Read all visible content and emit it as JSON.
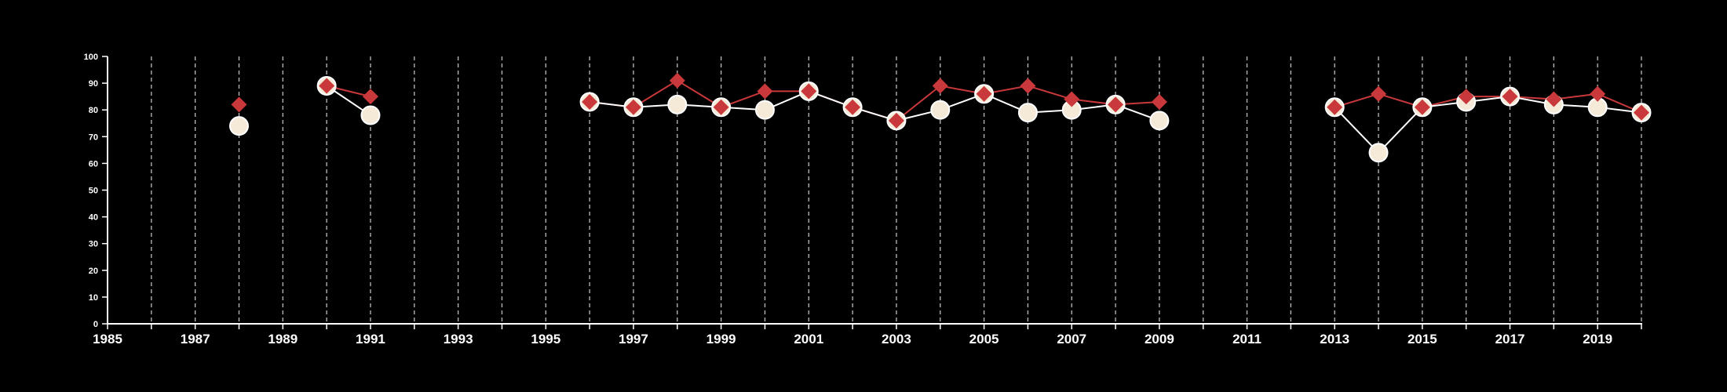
{
  "chart_data": {
    "type": "line",
    "title": "",
    "xlabel": "",
    "ylabel": "",
    "xlim": [
      1985,
      2020
    ],
    "ylim": [
      0,
      100
    ],
    "x_ticks": [
      1985,
      1987,
      1989,
      1991,
      1993,
      1995,
      1997,
      1999,
      2001,
      2003,
      2005,
      2007,
      2009,
      2011,
      2013,
      2015,
      2017,
      2019
    ],
    "y_ticks": [
      0,
      10,
      20,
      30,
      40,
      50,
      60,
      70,
      80,
      90,
      100
    ],
    "vertical_gridlines": "dashed, every year",
    "background": "#000000",
    "axis_color": "#ffffff",
    "series": [
      {
        "marker": "diamond",
        "color": "#c9383a",
        "points": [
          [
            1988,
            82
          ],
          [
            1990,
            89
          ],
          [
            1991,
            85
          ],
          [
            1996,
            83
          ],
          [
            1997,
            81
          ],
          [
            1998,
            91
          ],
          [
            1999,
            81
          ],
          [
            2000,
            87
          ],
          [
            2001,
            87
          ],
          [
            2002,
            81
          ],
          [
            2003,
            76
          ],
          [
            2004,
            89
          ],
          [
            2005,
            86
          ],
          [
            2006,
            89
          ],
          [
            2007,
            84
          ],
          [
            2008,
            82
          ],
          [
            2009,
            83
          ],
          [
            2013,
            81
          ],
          [
            2014,
            86
          ],
          [
            2015,
            81
          ],
          [
            2016,
            85
          ],
          [
            2017,
            85
          ],
          [
            2018,
            84
          ],
          [
            2019,
            86
          ],
          [
            2020,
            79
          ]
        ]
      },
      {
        "marker": "circle",
        "color": "#f5ead8",
        "points": [
          [
            1988,
            74
          ],
          [
            1990,
            89
          ],
          [
            1991,
            78
          ],
          [
            1996,
            83
          ],
          [
            1997,
            81
          ],
          [
            1998,
            82
          ],
          [
            1999,
            81
          ],
          [
            2000,
            80
          ],
          [
            2001,
            87
          ],
          [
            2002,
            81
          ],
          [
            2003,
            76
          ],
          [
            2004,
            80
          ],
          [
            2005,
            86
          ],
          [
            2006,
            79
          ],
          [
            2007,
            80
          ],
          [
            2008,
            82
          ],
          [
            2009,
            76
          ],
          [
            2013,
            81
          ],
          [
            2014,
            64
          ],
          [
            2015,
            81
          ],
          [
            2016,
            83
          ],
          [
            2017,
            85
          ],
          [
            2018,
            82
          ],
          [
            2019,
            81
          ],
          [
            2020,
            79
          ]
        ]
      }
    ]
  }
}
